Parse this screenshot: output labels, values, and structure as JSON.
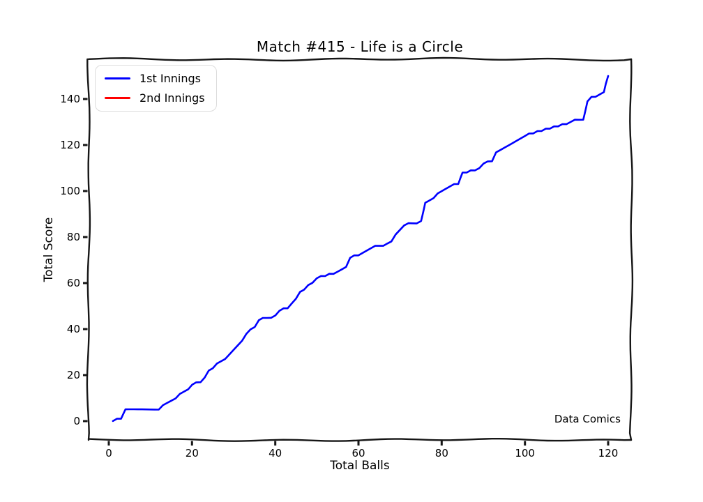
{
  "chart_data": {
    "type": "line",
    "title": "Match #415 - Life is a Circle",
    "xlabel": "Total Balls",
    "ylabel": "Total Score",
    "xlim": [
      -5,
      126
    ],
    "ylim": [
      -8,
      157
    ],
    "xticks": [
      0,
      20,
      40,
      60,
      80,
      100,
      120
    ],
    "yticks": [
      0,
      20,
      40,
      60,
      80,
      100,
      120,
      140
    ],
    "grid": false,
    "style": "xkcd-sketch",
    "legend_position": "upper-left",
    "axis_color": "#161616",
    "background_color": "#ffffff",
    "annotations": [
      {
        "text": "Data Comics",
        "x": 123,
        "y": 0
      }
    ],
    "series": [
      {
        "name": "1st Innings",
        "color": "#0000ff",
        "x": [
          1,
          2,
          3,
          4,
          5,
          6,
          7,
          8,
          9,
          10,
          11,
          12,
          13,
          14,
          15,
          16,
          17,
          18,
          19,
          20,
          21,
          22,
          23,
          24,
          25,
          26,
          27,
          28,
          29,
          30,
          31,
          32,
          33,
          34,
          35,
          36,
          37,
          38,
          39,
          40,
          41,
          42,
          43,
          44,
          45,
          46,
          47,
          48,
          49,
          50,
          51,
          52,
          53,
          54,
          55,
          56,
          57,
          58,
          59,
          60,
          61,
          62,
          63,
          64,
          65,
          66,
          67,
          68,
          69,
          70,
          71,
          72,
          73,
          74,
          75,
          76,
          77,
          78,
          79,
          80,
          81,
          82,
          83,
          84,
          85,
          86,
          87,
          88,
          89,
          90,
          91,
          92,
          93,
          94,
          95,
          96,
          97,
          98,
          99,
          100,
          101,
          102,
          103,
          104,
          105,
          106,
          107,
          108,
          109,
          110,
          111,
          112,
          113,
          114,
          115,
          116,
          117,
          118,
          119,
          120
        ],
        "y": [
          0,
          1,
          1,
          5,
          5,
          5,
          5,
          5,
          5,
          5,
          5,
          5,
          7,
          8,
          9,
          10,
          12,
          13,
          14,
          16,
          17,
          17,
          19,
          22,
          23,
          25,
          26,
          27,
          29,
          31,
          33,
          35,
          38,
          40,
          41,
          44,
          45,
          45,
          45,
          46,
          48,
          49,
          49,
          51,
          53,
          56,
          57,
          59,
          60,
          62,
          63,
          63,
          64,
          64,
          65,
          66,
          67,
          71,
          72,
          72,
          73,
          74,
          75,
          76,
          76,
          76,
          77,
          78,
          81,
          83,
          85,
          86,
          86,
          86,
          87,
          95,
          96,
          97,
          99,
          100,
          101,
          102,
          103,
          103,
          108,
          108,
          109,
          109,
          110,
          112,
          113,
          113,
          117,
          118,
          119,
          120,
          121,
          122,
          123,
          124,
          125,
          125,
          126,
          126,
          127,
          127,
          128,
          128,
          129,
          129,
          130,
          131,
          131,
          131,
          139,
          141,
          141,
          142,
          143,
          150
        ]
      },
      {
        "name": "2nd Innings",
        "color": "#ff0000",
        "x": [],
        "y": []
      }
    ]
  }
}
